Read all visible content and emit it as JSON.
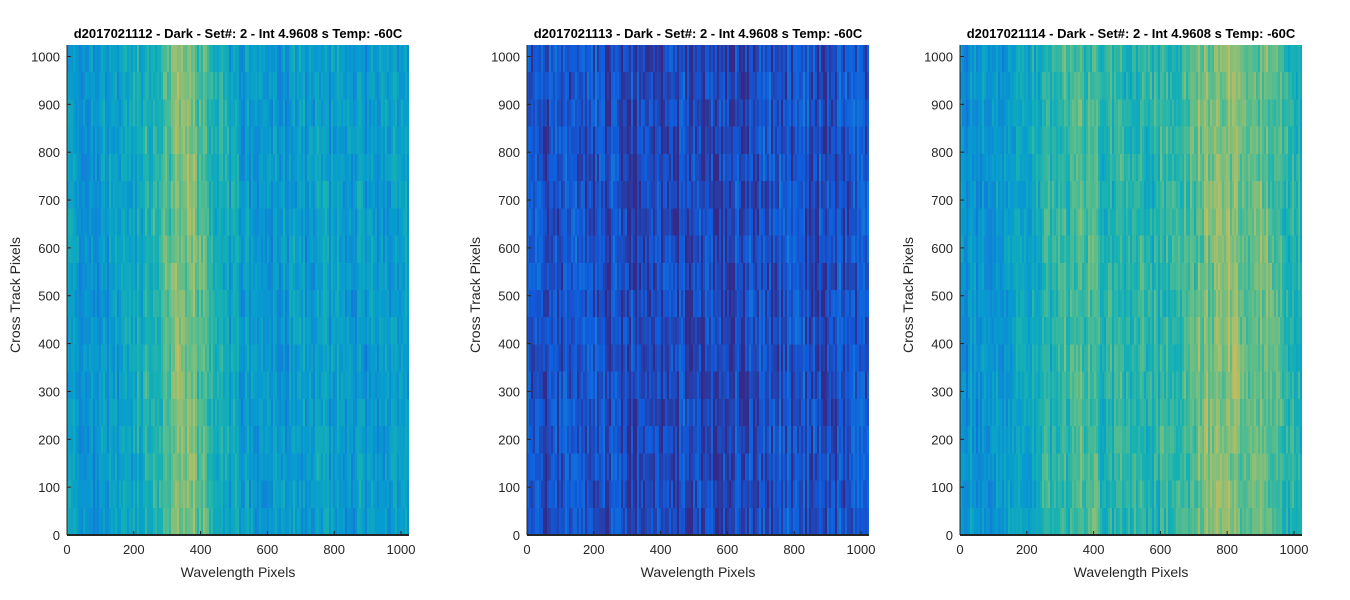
{
  "chart_data": [
    {
      "type": "heatmap",
      "title": "d2017021112 - Dark - Set#: 2 - Int 4.9608 s Temp: -60C",
      "xlabel": "Wavelength Pixels",
      "ylabel": "Cross Track Pixels",
      "xlim": [
        0,
        1024
      ],
      "ylim": [
        0,
        1024
      ],
      "xticks": [
        0,
        200,
        400,
        600,
        800,
        1000
      ],
      "yticks": [
        0,
        100,
        200,
        300,
        400,
        500,
        600,
        700,
        800,
        900,
        1000
      ],
      "colormap": "parula",
      "column_intensity": {
        "x": [
          0,
          100,
          200,
          300,
          350,
          400,
          450,
          500,
          600,
          700,
          800,
          900,
          1024
        ],
        "level": [
          0.3,
          0.28,
          0.34,
          0.5,
          0.56,
          0.5,
          0.4,
          0.32,
          0.3,
          0.3,
          0.31,
          0.3,
          0.3
        ]
      }
    },
    {
      "type": "heatmap",
      "title": "d2017021113 - Dark - Set#: 2 - Int 4.9608 s Temp: -60C",
      "xlabel": "Wavelength Pixels",
      "ylabel": "Cross Track Pixels",
      "xlim": [
        0,
        1024
      ],
      "ylim": [
        0,
        1024
      ],
      "xticks": [
        0,
        200,
        400,
        600,
        800,
        1000
      ],
      "yticks": [
        0,
        100,
        200,
        300,
        400,
        500,
        600,
        700,
        800,
        900,
        1000
      ],
      "colormap": "parula",
      "column_intensity": {
        "x": [
          0,
          200,
          400,
          500,
          600,
          800,
          1024
        ],
        "level": [
          0.08,
          0.07,
          0.06,
          0.06,
          0.07,
          0.08,
          0.09
        ]
      }
    },
    {
      "type": "heatmap",
      "title": "d2017021114 - Dark - Set#: 2 - Int 4.9608 s Temp: -60C",
      "xlabel": "Wavelength Pixels",
      "ylabel": "Cross Track Pixels",
      "xlim": [
        0,
        1024
      ],
      "ylim": [
        0,
        1024
      ],
      "xticks": [
        0,
        200,
        400,
        600,
        800,
        1000
      ],
      "yticks": [
        0,
        100,
        200,
        300,
        400,
        500,
        600,
        700,
        800,
        900,
        1000
      ],
      "colormap": "parula",
      "column_intensity": {
        "x": [
          0,
          100,
          200,
          300,
          400,
          500,
          600,
          700,
          800,
          900,
          1024
        ],
        "level": [
          0.28,
          0.3,
          0.36,
          0.44,
          0.46,
          0.4,
          0.42,
          0.5,
          0.58,
          0.52,
          0.4
        ]
      }
    }
  ]
}
